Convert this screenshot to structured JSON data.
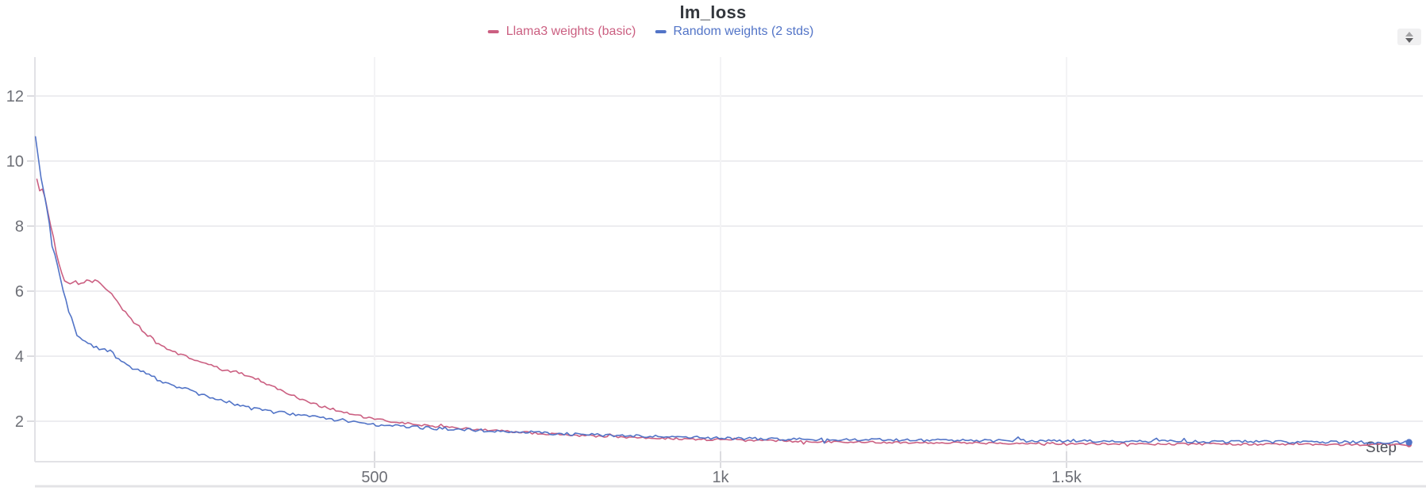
{
  "chart_data": {
    "type": "line",
    "title": "lm_loss",
    "xlabel": "Step",
    "ylabel": "",
    "xlim": [
      0,
      2020
    ],
    "ylim": [
      0.75,
      13.1
    ],
    "grid": true,
    "legend_position": "top-center",
    "x_ticks": [
      {
        "value": 500,
        "label": "500"
      },
      {
        "value": 1000,
        "label": "1k"
      },
      {
        "value": 1500,
        "label": "1.5k"
      }
    ],
    "y_ticks": [
      2,
      4,
      6,
      8,
      10,
      12
    ],
    "series": [
      {
        "name": "Llama3 weights (basic)",
        "color": "#cb5f81",
        "noise": 0.045,
        "end_dot": true,
        "steps": [
          12,
          15,
          18,
          21,
          24,
          27,
          30,
          33,
          36,
          39,
          42,
          45,
          48,
          51,
          54,
          58,
          62,
          66,
          70,
          74,
          78,
          82,
          86,
          90,
          94,
          98,
          102,
          106,
          112,
          118,
          124,
          130,
          136,
          142,
          148,
          154,
          160,
          166,
          172,
          178,
          184,
          190,
          198,
          206,
          215,
          225,
          235,
          245,
          255,
          265,
          275,
          285,
          295,
          305,
          315,
          325,
          335,
          345,
          355,
          365,
          375,
          385,
          395,
          405,
          415,
          425,
          435,
          445,
          455,
          465,
          475,
          490,
          505,
          520,
          535,
          550,
          565,
          580,
          595,
          610,
          625,
          640,
          655,
          670,
          685,
          700,
          720,
          740,
          760,
          780,
          800,
          825,
          850,
          880,
          910,
          940,
          970,
          1000,
          1040,
          1080,
          1120,
          1160,
          1200,
          1260,
          1320,
          1390,
          1460,
          1540,
          1620,
          1700,
          1790,
          1880,
          1995
        ],
        "values": [
          9.5,
          9.1,
          8.9,
          9.35,
          8.9,
          8.55,
          8.2,
          7.9,
          7.6,
          7.3,
          7.0,
          6.75,
          6.5,
          6.35,
          6.25,
          6.2,
          6.22,
          6.3,
          6.25,
          6.2,
          6.28,
          6.2,
          6.5,
          6.25,
          6.2,
          6.45,
          6.25,
          6.15,
          6.05,
          5.95,
          5.8,
          5.65,
          5.45,
          5.3,
          5.15,
          5.0,
          4.9,
          4.78,
          4.65,
          4.55,
          4.42,
          4.35,
          4.25,
          4.18,
          4.1,
          4.0,
          3.93,
          3.86,
          3.78,
          3.7,
          3.62,
          3.55,
          3.52,
          3.5,
          3.42,
          3.33,
          3.25,
          3.15,
          3.05,
          2.95,
          2.85,
          2.76,
          2.67,
          2.6,
          2.52,
          2.45,
          2.4,
          2.34,
          2.28,
          2.23,
          2.18,
          2.1,
          2.05,
          2.0,
          1.96,
          1.92,
          1.89,
          1.86,
          1.83,
          1.8,
          1.78,
          1.76,
          1.74,
          1.72,
          1.7,
          1.68,
          1.65,
          1.62,
          1.6,
          1.58,
          1.56,
          1.54,
          1.52,
          1.5,
          1.48,
          1.46,
          1.44,
          1.43,
          1.41,
          1.4,
          1.38,
          1.37,
          1.36,
          1.35,
          1.34,
          1.33,
          1.32,
          1.31,
          1.3,
          1.3,
          1.29,
          1.28,
          1.28
        ]
      },
      {
        "name": "Random weights (2 stds)",
        "color": "#5274c7",
        "noise": 0.065,
        "end_dot": true,
        "steps": [
          10,
          14,
          18,
          22,
          26,
          30,
          34,
          38,
          42,
          46,
          50,
          55,
          60,
          65,
          70,
          75,
          80,
          85,
          90,
          100,
          110,
          118,
          125,
          135,
          145,
          155,
          165,
          175,
          185,
          195,
          210,
          225,
          240,
          255,
          270,
          285,
          300,
          315,
          330,
          345,
          360,
          375,
          390,
          405,
          420,
          435,
          450,
          465,
          480,
          500,
          520,
          540,
          560,
          580,
          600,
          625,
          650,
          675,
          700,
          730,
          760,
          790,
          820,
          850,
          885,
          920,
          960,
          1000,
          1050,
          1100,
          1160,
          1220,
          1280,
          1350,
          1420,
          1500,
          1580,
          1660,
          1750,
          1850,
          1950,
          1995
        ],
        "values": [
          10.78,
          10.1,
          9.5,
          9.0,
          8.5,
          8.0,
          7.6,
          7.2,
          6.8,
          6.4,
          6.0,
          5.6,
          5.25,
          4.95,
          4.7,
          4.55,
          4.45,
          4.38,
          4.32,
          4.25,
          4.18,
          4.15,
          4.0,
          3.85,
          3.7,
          3.6,
          3.5,
          3.4,
          3.3,
          3.22,
          3.1,
          3.0,
          2.88,
          2.78,
          2.68,
          2.6,
          2.52,
          2.42,
          2.37,
          2.32,
          2.27,
          2.23,
          2.19,
          2.15,
          2.11,
          2.07,
          2.04,
          2.0,
          1.97,
          1.9,
          1.87,
          1.84,
          1.82,
          1.79,
          1.77,
          1.74,
          1.72,
          1.7,
          1.68,
          1.65,
          1.62,
          1.6,
          1.58,
          1.56,
          1.54,
          1.52,
          1.5,
          1.48,
          1.46,
          1.45,
          1.44,
          1.43,
          1.42,
          1.41,
          1.4,
          1.4,
          1.39,
          1.38,
          1.37,
          1.36,
          1.35,
          1.35
        ]
      }
    ],
    "colors": {
      "title_text": "#33373d",
      "tick_text": "#6d6f76",
      "axis_label_text": "#4e5058",
      "axis_line": "#e2e2e6",
      "grid_line": "#ededf0",
      "tick_stub": "#dcdce0",
      "faint_vgrid": "#f3f3f5",
      "bottom_divider": "#e3e3e6",
      "stepper_bg": "#f0f0f1"
    }
  },
  "controls": {
    "stepper_tooltip": "resize"
  }
}
